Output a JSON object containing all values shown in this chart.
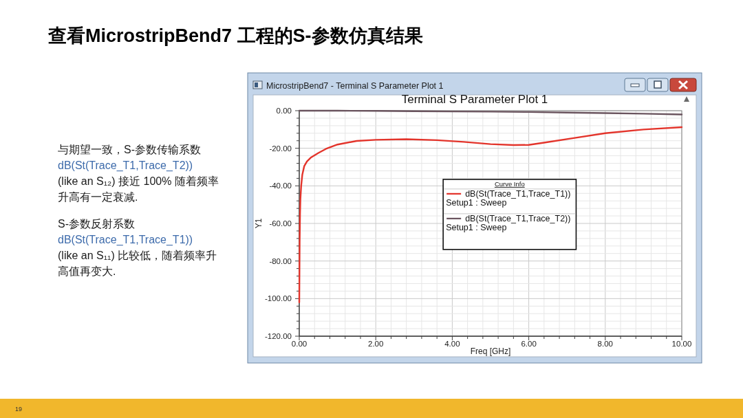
{
  "chart_data": {
    "type": "line",
    "title": "查看MicrostripBend7 工程的S-参数仿真结果",
    "subtitle": "Terminal S Parameter Plot 1",
    "xlabel": "Freq [GHz]",
    "ylabel": "Y1",
    "legend_title": "Curve Info",
    "series": [
      {
        "name": "dB(St(Trace_T1,Trace_T1))\nSetup1 : Sweep",
        "color": "#e3342b",
        "x": [
          0,
          0.01,
          0.02,
          0.03,
          0.05,
          0.08,
          0.13,
          0.2,
          0.3,
          0.5,
          0.7,
          1,
          1.5,
          2,
          2.8,
          3.6,
          4.3,
          5,
          5.6,
          6,
          6.4,
          7.2,
          8,
          9,
          10
        ],
        "values": [
          -102,
          -70,
          -55,
          -47,
          -40,
          -34,
          -29.5,
          -27,
          -25,
          -22.5,
          -20.3,
          -18,
          -16.1,
          -15.5,
          -15.2,
          -15.7,
          -16.6,
          -17.8,
          -18.3,
          -18.2,
          -17,
          -14.5,
          -12,
          -10,
          -8.8
        ]
      },
      {
        "name": "dB(St(Trace_T1,Trace_T2))\nSetup1 : Sweep",
        "color": "#6a545e",
        "x": [
          0,
          1,
          2,
          3,
          4,
          5,
          6,
          7,
          8,
          9,
          10
        ],
        "values": [
          0,
          0,
          -0.1,
          -0.3,
          -0.4,
          -0.5,
          -0.7,
          -1,
          -1.3,
          -1.6,
          -2
        ]
      }
    ],
    "xlim": [
      0,
      10
    ],
    "ylim": [
      -120,
      0
    ],
    "xticks": [
      {
        "value": 0,
        "label": "0.00"
      },
      {
        "value": 2,
        "label": "2.00"
      },
      {
        "value": 4,
        "label": "4.00"
      },
      {
        "value": 6,
        "label": "6.00"
      },
      {
        "value": 8,
        "label": "8.00"
      },
      {
        "value": 10,
        "label": "10.00"
      }
    ],
    "yticks": [
      {
        "value": 0,
        "label": "0.00"
      },
      {
        "value": -20,
        "label": "-20.00"
      },
      {
        "value": -40,
        "label": "-40.00"
      },
      {
        "value": -60,
        "label": "-60.00"
      },
      {
        "value": -80,
        "label": "-80.00"
      },
      {
        "value": -100,
        "label": "-100.00"
      },
      {
        "value": -120,
        "label": "-120.00"
      }
    ],
    "grid": true,
    "legend": "center",
    "line_style": "solid",
    "annotations": [
      "MicrostripBend7 - Terminal S Parameter Plot 1",
      "与期望一致，S-参数传输系数",
      "dB(St(Trace_T1,Trace_T2))",
      "(like an S₁₂) 接近 100% 随着频率升高有一定衰减.",
      "S-参数反射系数",
      "dB(St(Trace_T1,Trace_T1))",
      "(like an S₁₁) 比较低，随着频率升高值再变大.",
      "19"
    ]
  }
}
